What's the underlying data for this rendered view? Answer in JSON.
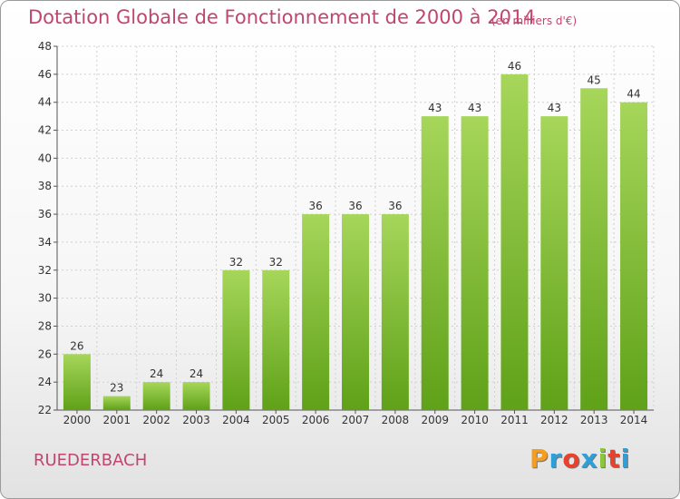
{
  "header": {
    "title": "Dotation Globale de Fonctionnement de 2000 à 2014",
    "subtitle": "(en milliers d'€)"
  },
  "footer": {
    "commune": "RUEDERBACH",
    "logo_text": "Proxiti",
    "logo_colors": [
      "#f59d1c",
      "#2f9fd8",
      "#e8412c",
      "#2f9fd8",
      "#8cc63f",
      "#e8412c",
      "#2f9fd8"
    ]
  },
  "colors": {
    "bar_light": "#a6d65a",
    "bar_dark": "#5fa118",
    "title": "#c0466f",
    "grid": "#d0d0d0"
  },
  "chart_data": {
    "type": "bar",
    "categories": [
      "2000",
      "2001",
      "2002",
      "2003",
      "2004",
      "2005",
      "2006",
      "2007",
      "2008",
      "2009",
      "2010",
      "2011",
      "2012",
      "2013",
      "2014"
    ],
    "values": [
      26,
      23,
      24,
      24,
      32,
      32,
      36,
      36,
      36,
      43,
      43,
      46,
      43,
      45,
      44
    ],
    "title": "Dotation Globale de Fonctionnement de 2000 à 2014",
    "subtitle": "(en milliers d'€)",
    "ylim": [
      22,
      48
    ],
    "yticks": [
      22,
      24,
      26,
      28,
      30,
      32,
      34,
      36,
      38,
      40,
      42,
      44,
      46,
      48
    ],
    "grid": true,
    "data_labels": true
  }
}
